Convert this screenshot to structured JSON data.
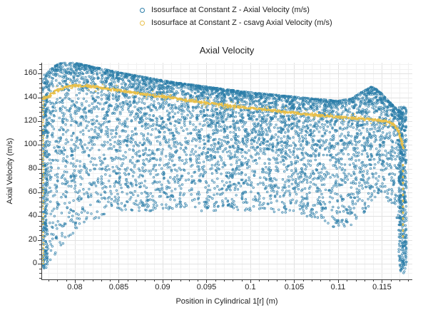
{
  "title": "Axial Velocity",
  "legend": {
    "items": [
      {
        "label": "Isosurface at Constant Z - Axial Velocity (m/s)",
        "color": "#2b7da8"
      },
      {
        "label": "Isosurface at Constant Z - csavg Axial Velocity (m/s)",
        "color": "#e9c04a"
      }
    ]
  },
  "axes": {
    "x": {
      "label": "Position in Cylindrical 1[r] (m)",
      "major_tick_values": [
        0.08,
        0.085,
        0.09,
        0.095,
        0.1,
        0.105,
        0.11,
        0.115
      ],
      "major_tick_labels": [
        "0.08",
        "0.085",
        "0.09",
        "0.095",
        "0.1",
        "0.105",
        "0.11",
        "0.115"
      ],
      "minor_step": 0.001
    },
    "y": {
      "label": "Axial Velocity (m/s)",
      "major_tick_values": [
        0,
        20,
        40,
        60,
        80,
        100,
        120,
        140,
        160
      ],
      "major_tick_labels": [
        "0",
        "20",
        "40",
        "60",
        "80",
        "100",
        "120",
        "140",
        "160"
      ],
      "minor_step": 4
    }
  },
  "colors": {
    "series_blue": "#2b7da8",
    "series_yellow": "#e9c04a",
    "axis": "#3a3a3a",
    "grid_minor": "#f1f1f1",
    "grid_major": "#e2e2e2",
    "text": "#222222",
    "background": "#ffffff"
  },
  "chart_data": {
    "type": "scatter",
    "title": "Axial Velocity",
    "xlabel": "Position in Cylindrical 1[r] (m)",
    "ylabel": "Axial Velocity (m/s)",
    "xlim": [
      0.07618,
      0.11846
    ],
    "ylim": [
      -13.2,
      169.2
    ],
    "grid": true,
    "legend_position": "top-center",
    "seed": 42,
    "series": [
      {
        "name": "Isosurface at Constant Z - Axial Velocity (m/s)",
        "color": "#2b7da8",
        "marker": "open-circle",
        "kind": "dense-scatter-cloud",
        "n_points": 5600,
        "x_range": [
          0.0766,
          0.1174
        ],
        "density_bias_exponent": 2.1,
        "uniform_mix_fraction": 0.15,
        "upper_envelope": [
          [
            0.0763,
            150
          ],
          [
            0.0768,
            160
          ],
          [
            0.0775,
            166
          ],
          [
            0.0785,
            169
          ],
          [
            0.08,
            169
          ],
          [
            0.082,
            166
          ],
          [
            0.085,
            161
          ],
          [
            0.088,
            157
          ],
          [
            0.091,
            153
          ],
          [
            0.095,
            149
          ],
          [
            0.099,
            145
          ],
          [
            0.103,
            142
          ],
          [
            0.107,
            139
          ],
          [
            0.11,
            137
          ],
          [
            0.1115,
            139
          ],
          [
            0.1128,
            145
          ],
          [
            0.1138,
            149
          ],
          [
            0.1146,
            146
          ],
          [
            0.1155,
            139
          ],
          [
            0.1163,
            133
          ],
          [
            0.117,
            128
          ],
          [
            0.1176,
            126
          ]
        ],
        "lower_envelope": [
          [
            0.0763,
            -5
          ],
          [
            0.0772,
            2
          ],
          [
            0.078,
            9
          ],
          [
            0.079,
            20
          ],
          [
            0.08,
            27
          ],
          [
            0.0812,
            34
          ],
          [
            0.0835,
            40
          ],
          [
            0.086,
            43
          ],
          [
            0.09,
            45
          ],
          [
            0.094,
            44
          ],
          [
            0.098,
            45
          ],
          [
            0.102,
            44
          ],
          [
            0.105,
            42
          ],
          [
            0.107,
            38
          ],
          [
            0.1085,
            33
          ],
          [
            0.11,
            27
          ],
          [
            0.1113,
            30
          ],
          [
            0.1127,
            40
          ],
          [
            0.114,
            52
          ],
          [
            0.1148,
            61
          ],
          [
            0.1156,
            54
          ],
          [
            0.1163,
            45
          ],
          [
            0.1169,
            28
          ],
          [
            0.1172,
            5
          ],
          [
            0.1176,
            -8
          ]
        ],
        "left_wall_strip": {
          "x_range": [
            0.0763,
            0.0769
          ],
          "v_range": [
            -5,
            160
          ],
          "n_points": 260
        },
        "right_wall_strip": {
          "x_range": [
            0.1169,
            0.1178
          ],
          "v_range": [
            -8,
            132
          ],
          "n_points": 380
        }
      },
      {
        "name": "Isosurface at Constant Z - csavg Axial Velocity (m/s)",
        "color": "#e9c04a",
        "marker": "dot-band",
        "kind": "curve-of-dots",
        "curve": [
          [
            0.0764,
            139
          ],
          [
            0.077,
            141
          ],
          [
            0.078,
            146
          ],
          [
            0.079,
            149
          ],
          [
            0.08,
            150
          ],
          [
            0.0815,
            149.5
          ],
          [
            0.083,
            148
          ],
          [
            0.085,
            146
          ],
          [
            0.0875,
            143
          ],
          [
            0.09,
            140.5
          ],
          [
            0.0925,
            138
          ],
          [
            0.095,
            135.5
          ],
          [
            0.0975,
            133
          ],
          [
            0.1,
            131
          ],
          [
            0.1025,
            129
          ],
          [
            0.105,
            127
          ],
          [
            0.1075,
            125
          ],
          [
            0.11,
            123.5
          ],
          [
            0.1125,
            122
          ],
          [
            0.1145,
            121
          ],
          [
            0.1158,
            119.5
          ],
          [
            0.1164,
            117
          ],
          [
            0.1169,
            112
          ],
          [
            0.1172,
            104
          ],
          [
            0.1174,
            97
          ]
        ],
        "left_wall_strip": {
          "x": 0.0764,
          "v_range": [
            0,
            141
          ]
        },
        "right_wall_strip": {
          "x": 0.1174,
          "v_range": [
            24,
            100
          ]
        }
      }
    ]
  }
}
